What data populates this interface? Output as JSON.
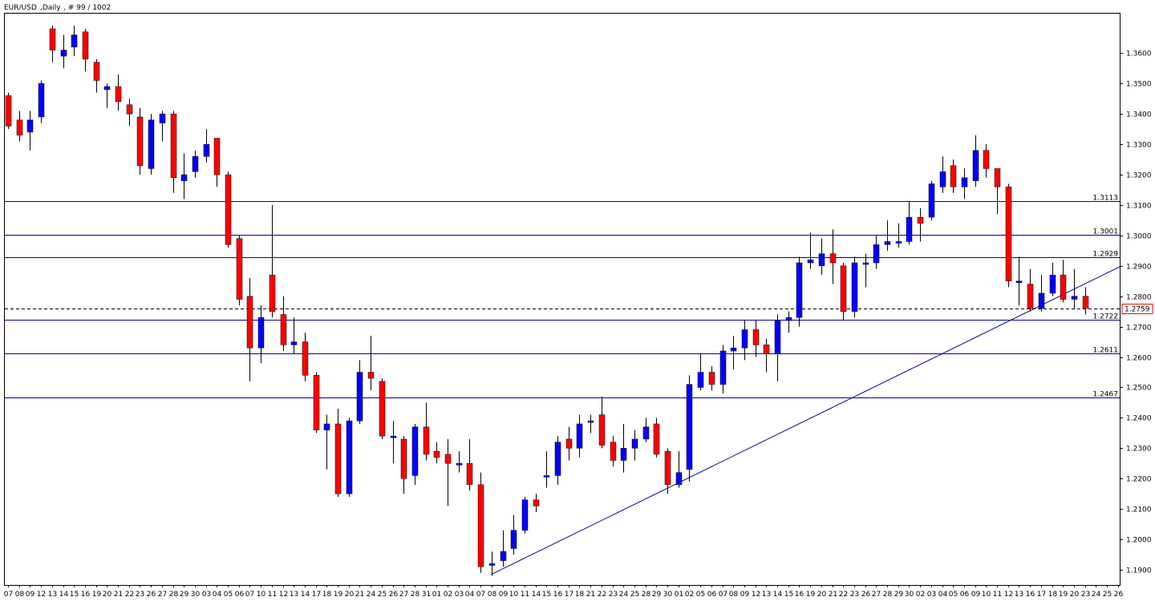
{
  "header": {
    "symbol_label": "EUR/USD",
    "timeframe_label": ",Daily",
    "bars_label": ", # 99 / 1002"
  },
  "colors": {
    "bull": "#0000ff",
    "bear": "#ff0000",
    "wick": "#000000",
    "grid_line": "#0000a0",
    "trend_line": "#0000a0",
    "price_tag_border": "#ff0000"
  },
  "chart_data": {
    "type": "candlestick",
    "ylim": [
      1.185,
      1.373
    ],
    "y_ticks": [
      "1.3600",
      "1.3500",
      "1.3400",
      "1.3300",
      "1.3200",
      "1.3100",
      "1.3000",
      "1.2900",
      "1.2800",
      "1.2700",
      "1.2600",
      "1.2500",
      "1.2400",
      "1.2300",
      "1.2200",
      "1.2100",
      "1.2000",
      "1.1900"
    ],
    "x_labels": [
      "07",
      "08",
      "09",
      "12",
      "13",
      "14",
      "15",
      "16",
      "19",
      "20",
      "21",
      "22",
      "23",
      "26",
      "27",
      "28",
      "29",
      "30",
      "03",
      "04",
      "05",
      "06",
      "07",
      "10",
      "11",
      "12",
      "13",
      "14",
      "17",
      "18",
      "19",
      "20",
      "21",
      "24",
      "25",
      "26",
      "27",
      "28",
      "31",
      "01",
      "02",
      "03",
      "04",
      "07",
      "08",
      "09",
      "10",
      "11",
      "14",
      "15",
      "16",
      "17",
      "18",
      "21",
      "22",
      "23",
      "24",
      "25",
      "28",
      "29",
      "30",
      "01",
      "02",
      "05",
      "06",
      "07",
      "08",
      "09",
      "12",
      "13",
      "14",
      "15",
      "16",
      "19",
      "20",
      "21",
      "22",
      "23",
      "26",
      "27",
      "28",
      "29",
      "30",
      "02",
      "03",
      "04",
      "05",
      "06",
      "09",
      "10",
      "11",
      "12",
      "13",
      "16",
      "17",
      "18",
      "19",
      "20",
      "23",
      "24",
      "25",
      "26"
    ],
    "candles": [
      [
        1.346,
        1.336,
        1.347,
        1.335
      ],
      [
        1.338,
        1.333,
        1.341,
        1.331
      ],
      [
        1.334,
        1.338,
        1.341,
        1.328
      ],
      [
        1.339,
        1.35,
        1.351,
        1.337
      ],
      [
        1.368,
        1.361,
        1.369,
        1.357
      ],
      [
        1.359,
        1.361,
        1.366,
        1.355
      ],
      [
        1.362,
        1.366,
        1.369,
        1.359
      ],
      [
        1.367,
        1.358,
        1.368,
        1.354
      ],
      [
        1.357,
        1.351,
        1.358,
        1.347
      ],
      [
        1.348,
        1.349,
        1.35,
        1.342
      ],
      [
        1.349,
        1.344,
        1.353,
        1.341
      ],
      [
        1.343,
        1.34,
        1.345,
        1.336
      ],
      [
        1.339,
        1.323,
        1.342,
        1.32
      ],
      [
        1.322,
        1.338,
        1.34,
        1.32
      ],
      [
        1.337,
        1.34,
        1.341,
        1.331
      ],
      [
        1.34,
        1.319,
        1.341,
        1.314
      ],
      [
        1.318,
        1.32,
        1.327,
        1.312
      ],
      [
        1.321,
        1.326,
        1.328,
        1.319
      ],
      [
        1.326,
        1.33,
        1.335,
        1.324
      ],
      [
        1.332,
        1.32,
        1.332,
        1.316
      ],
      [
        1.32,
        1.297,
        1.321,
        1.296
      ],
      [
        1.299,
        1.279,
        1.3,
        1.277
      ],
      [
        1.28,
        1.263,
        1.286,
        1.252
      ],
      [
        1.263,
        1.273,
        1.277,
        1.258
      ],
      [
        1.287,
        1.275,
        1.31,
        1.273
      ],
      [
        1.274,
        1.264,
        1.28,
        1.262
      ],
      [
        1.264,
        1.265,
        1.273,
        1.261
      ],
      [
        1.265,
        1.254,
        1.268,
        1.252
      ],
      [
        1.254,
        1.236,
        1.255,
        1.235
      ],
      [
        1.236,
        1.238,
        1.241,
        1.223
      ],
      [
        1.238,
        1.215,
        1.243,
        1.214
      ],
      [
        1.215,
        1.239,
        1.24,
        1.214
      ],
      [
        1.239,
        1.255,
        1.259,
        1.238
      ],
      [
        1.255,
        1.253,
        1.267,
        1.249
      ],
      [
        1.252,
        1.234,
        1.253,
        1.233
      ],
      [
        1.234,
        1.234,
        1.239,
        1.225
      ],
      [
        1.233,
        1.22,
        1.234,
        1.215
      ],
      [
        1.221,
        1.237,
        1.238,
        1.218
      ],
      [
        1.237,
        1.228,
        1.245,
        1.226
      ],
      [
        1.229,
        1.227,
        1.232,
        1.225
      ],
      [
        1.228,
        1.225,
        1.233,
        1.211
      ],
      [
        1.225,
        1.225,
        1.229,
        1.222
      ],
      [
        1.225,
        1.218,
        1.233,
        1.216
      ],
      [
        1.218,
        1.191,
        1.222,
        1.189
      ],
      [
        1.192,
        1.192,
        1.196,
        1.188
      ],
      [
        1.193,
        1.196,
        1.203,
        1.191
      ],
      [
        1.197,
        1.203,
        1.208,
        1.195
      ],
      [
        1.203,
        1.213,
        1.214,
        1.202
      ],
      [
        1.213,
        1.211,
        1.215,
        1.209
      ],
      [
        1.221,
        1.221,
        1.229,
        1.217
      ],
      [
        1.221,
        1.232,
        1.234,
        1.218
      ],
      [
        1.233,
        1.23,
        1.237,
        1.226
      ],
      [
        1.23,
        1.238,
        1.241,
        1.227
      ],
      [
        1.239,
        1.239,
        1.241,
        1.235
      ],
      [
        1.241,
        1.231,
        1.247,
        1.23
      ],
      [
        1.232,
        1.226,
        1.234,
        1.224
      ],
      [
        1.226,
        1.23,
        1.238,
        1.222
      ],
      [
        1.23,
        1.233,
        1.236,
        1.226
      ],
      [
        1.233,
        1.237,
        1.24,
        1.232
      ],
      [
        1.238,
        1.228,
        1.24,
        1.227
      ],
      [
        1.229,
        1.218,
        1.23,
        1.215
      ],
      [
        1.218,
        1.222,
        1.229,
        1.217
      ],
      [
        1.223,
        1.251,
        1.254,
        1.219
      ],
      [
        1.25,
        1.255,
        1.261,
        1.249
      ],
      [
        1.255,
        1.251,
        1.257,
        1.249
      ],
      [
        1.251,
        1.262,
        1.264,
        1.248
      ],
      [
        1.262,
        1.263,
        1.267,
        1.256
      ],
      [
        1.263,
        1.269,
        1.272,
        1.259
      ],
      [
        1.269,
        1.264,
        1.272,
        1.26
      ],
      [
        1.264,
        1.261,
        1.266,
        1.255
      ],
      [
        1.261,
        1.272,
        1.274,
        1.252
      ],
      [
        1.272,
        1.273,
        1.275,
        1.268
      ],
      [
        1.273,
        1.291,
        1.293,
        1.27
      ],
      [
        1.291,
        1.292,
        1.301,
        1.289
      ],
      [
        1.29,
        1.294,
        1.299,
        1.287
      ],
      [
        1.294,
        1.291,
        1.302,
        1.284
      ],
      [
        1.29,
        1.275,
        1.291,
        1.272
      ],
      [
        1.275,
        1.291,
        1.293,
        1.273
      ],
      [
        1.291,
        1.291,
        1.294,
        1.283
      ],
      [
        1.291,
        1.297,
        1.3,
        1.289
      ],
      [
        1.297,
        1.298,
        1.305,
        1.295
      ],
      [
        1.298,
        1.298,
        1.304,
        1.296
      ],
      [
        1.298,
        1.306,
        1.311,
        1.297
      ],
      [
        1.306,
        1.304,
        1.309,
        1.298
      ],
      [
        1.306,
        1.317,
        1.318,
        1.305
      ],
      [
        1.316,
        1.321,
        1.326,
        1.314
      ],
      [
        1.323,
        1.316,
        1.325,
        1.314
      ],
      [
        1.316,
        1.319,
        1.322,
        1.312
      ],
      [
        1.318,
        1.328,
        1.333,
        1.316
      ],
      [
        1.328,
        1.322,
        1.33,
        1.319
      ],
      [
        1.322,
        1.316,
        1.322,
        1.307
      ],
      [
        1.316,
        1.285,
        1.317,
        1.283
      ],
      [
        1.285,
        1.285,
        1.293,
        1.277
      ],
      [
        1.284,
        1.276,
        1.289,
        1.275
      ],
      [
        1.276,
        1.281,
        1.287,
        1.275
      ],
      [
        1.281,
        1.287,
        1.291,
        1.28
      ],
      [
        1.287,
        1.279,
        1.292,
        1.278
      ],
      [
        1.279,
        1.28,
        1.289,
        1.276
      ],
      [
        1.28,
        1.276,
        1.283,
        1.274
      ]
    ],
    "horizontal_levels": [
      {
        "value": 1.3113,
        "label": "1.3113"
      },
      {
        "value": 1.3001,
        "label": "1.3001"
      },
      {
        "value": 1.2929,
        "label": "1.2929"
      },
      {
        "value": 1.2722,
        "label": "1.2722"
      },
      {
        "value": 1.2611,
        "label": "1.2611"
      },
      {
        "value": 1.2467,
        "label": "1.2467"
      }
    ],
    "current_price": {
      "value": 1.2759,
      "label": "1.2759"
    },
    "trend_line": {
      "from": {
        "candle_index": 44,
        "price": 1.1885
      },
      "to": {
        "candle_index": 103.5,
        "price": 1.2897
      }
    }
  }
}
